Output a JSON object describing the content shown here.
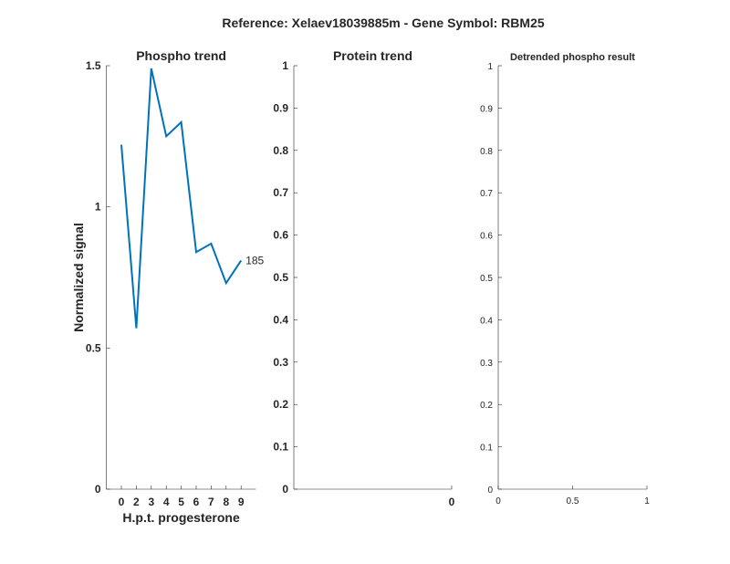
{
  "figure_title": "Reference:  Xelaev18039885m - Gene Symbol:  RBM25",
  "chart_data": [
    {
      "type": "line",
      "title": "Phospho trend",
      "xlabel": "H.p.t. progesterone",
      "ylabel": "Normalized signal",
      "categories": [
        "0",
        "2",
        "3",
        "4",
        "5",
        "6",
        "7",
        "8",
        "9"
      ],
      "series": [
        {
          "name": "185",
          "values": [
            1.22,
            0.57,
            1.49,
            1.25,
            1.3,
            0.84,
            0.87,
            0.73,
            0.81
          ],
          "color": "#0072BD"
        }
      ],
      "series_label": "185",
      "ylim": [
        0,
        1.5
      ],
      "yticks": [
        0,
        0.5,
        1,
        1.5
      ],
      "ytick_labels": [
        "0",
        "0.5",
        "1",
        "1.5"
      ],
      "grid": false
    },
    {
      "type": "line",
      "title": "Protein trend",
      "xlabel": "",
      "ylabel": "",
      "series": [],
      "ylim": [
        0,
        1
      ],
      "yticks": [
        0,
        0.1,
        0.2,
        0.3,
        0.4,
        0.5,
        0.6,
        0.7,
        0.8,
        0.9,
        1
      ],
      "ytick_labels": [
        "0",
        "0.1",
        "0.2",
        "0.3",
        "0.4",
        "0.5",
        "0.6",
        "0.7",
        "0.8",
        "0.9",
        "1"
      ],
      "xtick_labels": [
        "0"
      ],
      "grid": false
    },
    {
      "type": "line",
      "title": "Detrended phospho result",
      "xlabel": "",
      "ylabel": "",
      "series": [],
      "xlim": [
        0,
        1
      ],
      "ylim": [
        0,
        1
      ],
      "xticks": [
        0,
        0.5,
        1
      ],
      "xtick_labels": [
        "0",
        "0.5",
        "1"
      ],
      "yticks": [
        0,
        0.1,
        0.2,
        0.3,
        0.4,
        0.5,
        0.6,
        0.7,
        0.8,
        0.9,
        1
      ],
      "ytick_labels": [
        "0",
        "0.1",
        "0.2",
        "0.3",
        "0.4",
        "0.5",
        "0.6",
        "0.7",
        "0.8",
        "0.9",
        "1"
      ],
      "grid": false
    }
  ]
}
